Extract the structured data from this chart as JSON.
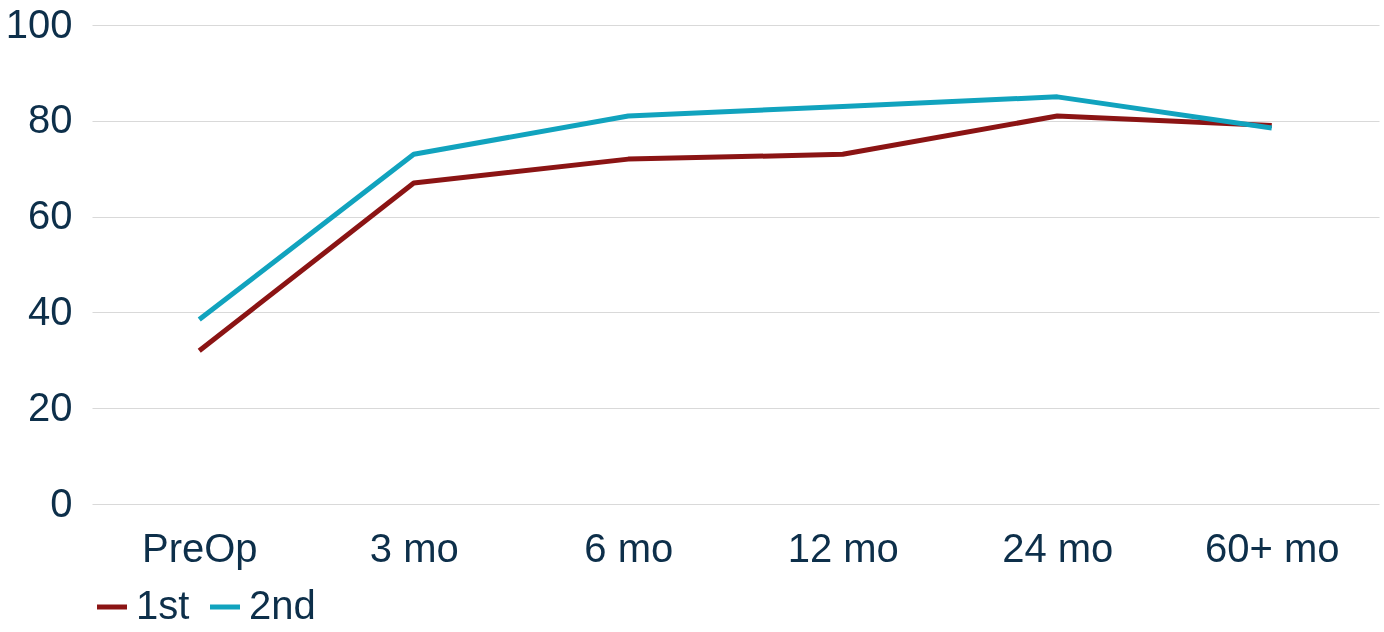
{
  "chart_data": {
    "type": "line",
    "categories": [
      "PreOp",
      "3 mo",
      "6 mo",
      "12 mo",
      "24 mo",
      "60+ mo"
    ],
    "series": [
      {
        "name": "1st",
        "color": "#8b1414",
        "values": [
          32,
          67,
          72,
          73,
          81,
          79
        ]
      },
      {
        "name": "2nd",
        "color": "#11a3be",
        "values": [
          38.5,
          73,
          81,
          83,
          85,
          78.5
        ]
      }
    ],
    "ylim": [
      0,
      100
    ],
    "yticks": [
      0,
      20,
      40,
      60,
      80,
      100
    ],
    "grid": "y",
    "legend": "bottom",
    "marker": "none",
    "line_style": "solid"
  }
}
